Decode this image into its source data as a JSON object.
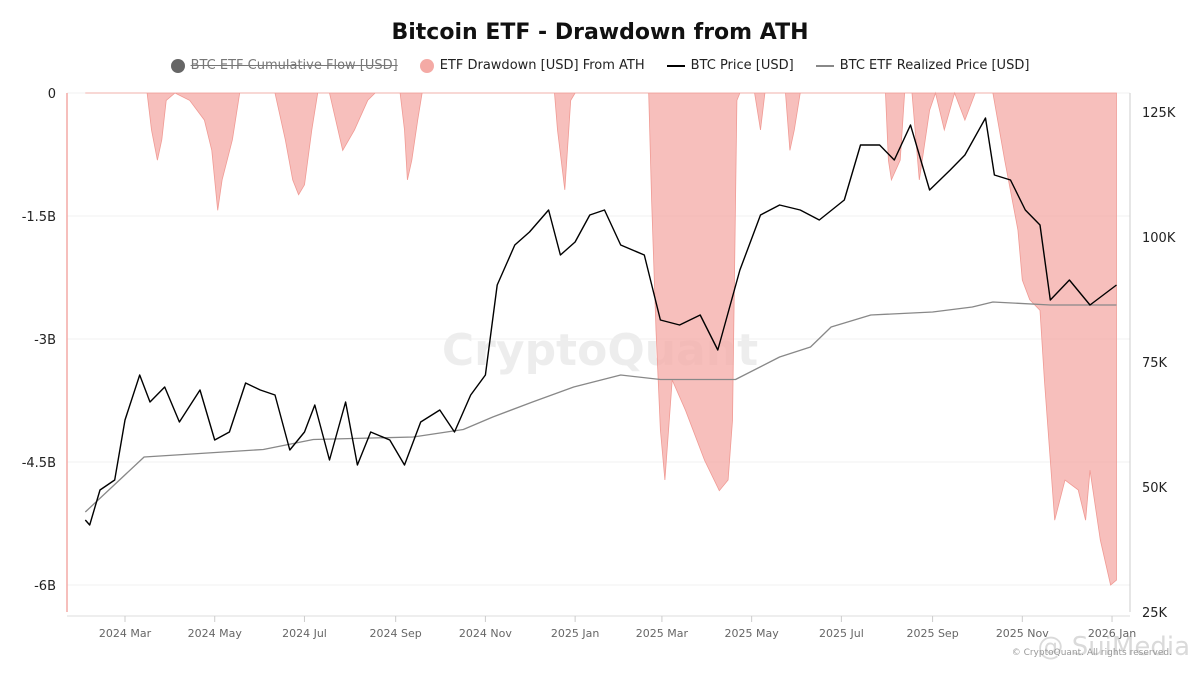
{
  "title": "Bitcoin ETF - Drawdown from ATH",
  "legend": [
    {
      "label": "BTC ETF Cumulative Flow [USD]",
      "color": "#666666",
      "hidden": true
    },
    {
      "label": "ETF Drawdown [USD] From ATH",
      "color": "#f4aaa5"
    },
    {
      "label": "BTC Price [USD]",
      "color": "#000000"
    },
    {
      "label": "BTC ETF Realized Price [USD]",
      "color": "#888888"
    }
  ],
  "watermark": "CryptoQuant",
  "footer": "© CryptoQuant. All rights reserved.",
  "overlay_watermark": "@ SuiMedia",
  "chart_data": {
    "type": "line",
    "title": "Bitcoin ETF - Drawdown from ATH",
    "x_ticks": [
      "2024 Mar",
      "2024 May",
      "2024 Jul",
      "2024 Sep",
      "2024 Nov",
      "2025 Jan",
      "2025 Mar",
      "2025 May",
      "2025 Jul",
      "2025 Sep",
      "2025 Nov",
      "2026 Jan"
    ],
    "x_tick_dates": [
      "2024-03-01",
      "2024-05-01",
      "2024-07-01",
      "2024-09-01",
      "2024-11-01",
      "2025-01-01",
      "2025-03-01",
      "2025-05-01",
      "2025-07-01",
      "2025-09-01",
      "2025-11-01",
      "2026-01-01"
    ],
    "left_axis": {
      "ticks": [
        "0",
        "-1.5B",
        "-3B",
        "-4.5B",
        "-6B"
      ],
      "tick_values": [
        0,
        -1.5,
        -3,
        -4.5,
        -6
      ],
      "unit": "B USD",
      "color": "#f4aaa5"
    },
    "right_axis": {
      "ticks": [
        "125K",
        "100K",
        "75K",
        "50K",
        "25K"
      ],
      "tick_values": [
        125,
        100,
        75,
        50,
        25
      ],
      "unit": "K USD"
    },
    "grid": true,
    "legend_position": "top",
    "series": [
      {
        "name": "ETF Drawdown [USD] From ATH",
        "axis": "left",
        "type": "area",
        "color": "#f4aaa5",
        "points": [
          [
            "2024-02-03",
            0
          ],
          [
            "2024-03-16",
            0
          ],
          [
            "2024-03-19",
            -0.45
          ],
          [
            "2024-03-23",
            -0.82
          ],
          [
            "2024-03-26",
            -0.57
          ],
          [
            "2024-03-29",
            -0.09
          ],
          [
            "2024-04-04",
            0
          ],
          [
            "2024-04-14",
            -0.09
          ],
          [
            "2024-04-24",
            -0.33
          ],
          [
            "2024-04-29",
            -0.7
          ],
          [
            "2024-05-03",
            -1.43
          ],
          [
            "2024-05-06",
            -1.06
          ],
          [
            "2024-05-13",
            -0.57
          ],
          [
            "2024-05-18",
            0
          ],
          [
            "2024-06-11",
            0
          ],
          [
            "2024-06-18",
            -0.57
          ],
          [
            "2024-06-23",
            -1.06
          ],
          [
            "2024-06-27",
            -1.24
          ],
          [
            "2024-07-01",
            -1.12
          ],
          [
            "2024-07-06",
            -0.45
          ],
          [
            "2024-07-10",
            0
          ],
          [
            "2024-07-18",
            0
          ],
          [
            "2024-07-27",
            -0.7
          ],
          [
            "2024-08-04",
            -0.45
          ],
          [
            "2024-08-13",
            -0.09
          ],
          [
            "2024-08-18",
            0
          ],
          [
            "2024-09-04",
            0
          ],
          [
            "2024-09-07",
            -0.45
          ],
          [
            "2024-09-09",
            -1.06
          ],
          [
            "2024-09-12",
            -0.82
          ],
          [
            "2024-09-16",
            -0.33
          ],
          [
            "2024-09-19",
            0
          ],
          [
            "2024-12-18",
            0
          ],
          [
            "2024-12-20",
            -0.45
          ],
          [
            "2024-12-25",
            -1.18
          ],
          [
            "2024-12-29",
            -0.09
          ],
          [
            "2025-01-01",
            0
          ],
          [
            "2025-02-20",
            0
          ],
          [
            "2025-02-22",
            -1.3
          ],
          [
            "2025-02-25",
            -2.89
          ],
          [
            "2025-02-28",
            -4.11
          ],
          [
            "2025-03-03",
            -4.72
          ],
          [
            "2025-03-08",
            -3.5
          ],
          [
            "2025-03-17",
            -3.87
          ],
          [
            "2025-03-30",
            -4.48
          ],
          [
            "2025-04-09",
            -4.85
          ],
          [
            "2025-04-15",
            -4.72
          ],
          [
            "2025-04-18",
            -3.99
          ],
          [
            "2025-04-21",
            -0.09
          ],
          [
            "2025-04-23",
            0
          ],
          [
            "2025-05-03",
            0
          ],
          [
            "2025-05-07",
            -0.45
          ],
          [
            "2025-05-10",
            0
          ],
          [
            "2025-05-24",
            0
          ],
          [
            "2025-05-27",
            -0.7
          ],
          [
            "2025-05-30",
            -0.45
          ],
          [
            "2025-06-03",
            0
          ],
          [
            "2025-07-31",
            0
          ],
          [
            "2025-08-02",
            -0.82
          ],
          [
            "2025-08-04",
            -1.06
          ],
          [
            "2025-08-10",
            -0.82
          ],
          [
            "2025-08-13",
            0
          ],
          [
            "2025-08-18",
            0
          ],
          [
            "2025-08-23",
            -1.06
          ],
          [
            "2025-08-30",
            -0.21
          ],
          [
            "2025-09-03",
            0
          ],
          [
            "2025-09-09",
            -0.45
          ],
          [
            "2025-09-16",
            0
          ],
          [
            "2025-09-23",
            -0.33
          ],
          [
            "2025-09-30",
            0
          ],
          [
            "2025-10-12",
            0
          ],
          [
            "2025-10-20",
            -0.82
          ],
          [
            "2025-10-29",
            -1.67
          ],
          [
            "2025-11-01",
            -2.28
          ],
          [
            "2025-11-06",
            -2.52
          ],
          [
            "2025-11-13",
            -2.65
          ],
          [
            "2025-11-16",
            -3.5
          ],
          [
            "2025-11-23",
            -5.21
          ],
          [
            "2025-11-30",
            -4.72
          ],
          [
            "2025-12-09",
            -4.84
          ],
          [
            "2025-12-14",
            -5.21
          ],
          [
            "2025-12-17",
            -4.6
          ],
          [
            "2025-12-24",
            -5.45
          ],
          [
            "2025-12-31",
            -6.0
          ],
          [
            "2026-01-04",
            -5.94
          ]
        ]
      },
      {
        "name": "BTC Price [USD]",
        "axis": "right",
        "color": "#000000",
        "points": [
          [
            "2024-02-03",
            43.4
          ],
          [
            "2024-02-06",
            42.4
          ],
          [
            "2024-02-13",
            49.4
          ],
          [
            "2024-02-23",
            51.4
          ],
          [
            "2024-03-01",
            63.4
          ],
          [
            "2024-03-11",
            72.4
          ],
          [
            "2024-03-18",
            67
          ],
          [
            "2024-03-28",
            70
          ],
          [
            "2024-04-07",
            63
          ],
          [
            "2024-04-21",
            69.4
          ],
          [
            "2024-05-01",
            59.4
          ],
          [
            "2024-05-11",
            61
          ],
          [
            "2024-05-22",
            70.8
          ],
          [
            "2024-06-01",
            69.4
          ],
          [
            "2024-06-11",
            68.4
          ],
          [
            "2024-06-21",
            57.4
          ],
          [
            "2024-07-01",
            61
          ],
          [
            "2024-07-08",
            66.4
          ],
          [
            "2024-07-18",
            55.4
          ],
          [
            "2024-07-29",
            67
          ],
          [
            "2024-08-06",
            54.4
          ],
          [
            "2024-08-15",
            61
          ],
          [
            "2024-08-28",
            59.4
          ],
          [
            "2024-09-07",
            54.4
          ],
          [
            "2024-09-18",
            63
          ],
          [
            "2024-10-01",
            65.4
          ],
          [
            "2024-10-11",
            61
          ],
          [
            "2024-10-22",
            68.4
          ],
          [
            "2024-11-01",
            72.4
          ],
          [
            "2024-11-09",
            90.4
          ],
          [
            "2024-11-21",
            98.4
          ],
          [
            "2024-12-01",
            101
          ],
          [
            "2024-12-14",
            105.4
          ],
          [
            "2024-12-22",
            96.4
          ],
          [
            "2025-01-01",
            99
          ],
          [
            "2025-01-11",
            104.4
          ],
          [
            "2025-01-21",
            105.4
          ],
          [
            "2025-02-01",
            98.4
          ],
          [
            "2025-02-17",
            96.4
          ],
          [
            "2025-02-28",
            83.4
          ],
          [
            "2025-03-13",
            82.4
          ],
          [
            "2025-03-27",
            84.4
          ],
          [
            "2025-04-08",
            77.4
          ],
          [
            "2025-04-23",
            93.4
          ],
          [
            "2025-05-07",
            104.4
          ],
          [
            "2025-05-20",
            106.4
          ],
          [
            "2025-06-03",
            105.4
          ],
          [
            "2025-06-16",
            103.4
          ],
          [
            "2025-07-03",
            107.4
          ],
          [
            "2025-07-14",
            118.4
          ],
          [
            "2025-07-27",
            118.4
          ],
          [
            "2025-08-06",
            115.4
          ],
          [
            "2025-08-17",
            122.4
          ],
          [
            "2025-08-30",
            109.4
          ],
          [
            "2025-09-13",
            113.4
          ],
          [
            "2025-09-23",
            116.4
          ],
          [
            "2025-10-07",
            123.8
          ],
          [
            "2025-10-13",
            112.4
          ],
          [
            "2025-10-24",
            111.4
          ],
          [
            "2025-11-03",
            105.4
          ],
          [
            "2025-11-13",
            102.4
          ],
          [
            "2025-11-20",
            87.4
          ],
          [
            "2025-12-03",
            91.4
          ],
          [
            "2025-12-17",
            86.4
          ],
          [
            "2026-01-04",
            90.4
          ]
        ]
      },
      {
        "name": "BTC ETF Realized Price [USD]",
        "axis": "right",
        "color": "#888888",
        "points": [
          [
            "2024-02-03",
            45
          ],
          [
            "2024-03-14",
            56
          ],
          [
            "2024-06-03",
            57.5
          ],
          [
            "2024-07-07",
            59.5
          ],
          [
            "2024-09-13",
            60
          ],
          [
            "2024-10-17",
            61.5
          ],
          [
            "2024-11-06",
            64
          ],
          [
            "2024-12-03",
            67
          ],
          [
            "2024-12-31",
            70
          ],
          [
            "2025-02-01",
            72.4
          ],
          [
            "2025-02-28",
            71.5
          ],
          [
            "2025-04-20",
            71.5
          ],
          [
            "2025-05-20",
            76
          ],
          [
            "2025-06-10",
            78
          ],
          [
            "2025-06-24",
            82
          ],
          [
            "2025-07-21",
            84.4
          ],
          [
            "2025-09-01",
            85
          ],
          [
            "2025-09-28",
            86
          ],
          [
            "2025-10-12",
            87
          ],
          [
            "2025-11-20",
            86.4
          ],
          [
            "2026-01-04",
            86.4
          ]
        ]
      }
    ]
  }
}
